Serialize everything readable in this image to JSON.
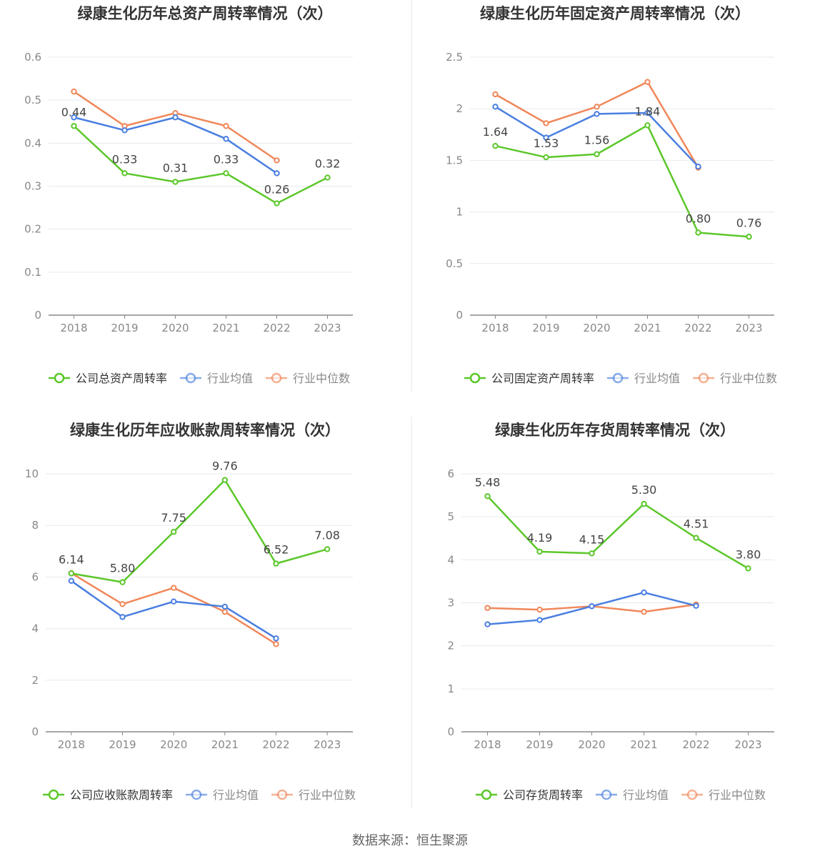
{
  "colors": {
    "company": "#5cc72a",
    "industry_avg": "#4a7fe0",
    "industry_median": "#f0875a",
    "grid": "#e6e9f0",
    "axis": "#888888",
    "tick_text": "#888888",
    "label_text": "#444444",
    "title_text": "#333333",
    "legend_text": "#666666"
  },
  "source": "数据来源：恒生聚源",
  "chart_data": [
    {
      "type": "line",
      "title": "绿康生化历年总资产周转率情况（次）",
      "categories": [
        "2018",
        "2019",
        "2020",
        "2021",
        "2022",
        "2023"
      ],
      "ylim": [
        0,
        0.6
      ],
      "yticks": [
        "0",
        "0.1",
        "0.2",
        "0.3",
        "0.4",
        "0.5",
        "0.6"
      ],
      "ytick_values": [
        0,
        0.1,
        0.2,
        0.3,
        0.4,
        0.5,
        0.6
      ],
      "grid": true,
      "legend": "bottom",
      "series": [
        {
          "name": "公司总资产周转率",
          "key": "company",
          "values": [
            0.44,
            0.33,
            0.31,
            0.33,
            0.26,
            0.32
          ],
          "labels": [
            "0.44",
            "0.33",
            "0.31",
            "0.33",
            "0.26",
            "0.32"
          ]
        },
        {
          "name": "行业均值",
          "key": "industry_avg",
          "values": [
            0.46,
            0.43,
            0.46,
            0.41,
            0.33,
            null
          ]
        },
        {
          "name": "行业中位数",
          "key": "industry_median",
          "values": [
            0.52,
            0.44,
            0.47,
            0.44,
            0.36,
            null
          ]
        }
      ]
    },
    {
      "type": "line",
      "title": "绿康生化历年固定资产周转率情况（次）",
      "categories": [
        "2018",
        "2019",
        "2020",
        "2021",
        "2022",
        "2023"
      ],
      "ylim": [
        0,
        2.5
      ],
      "yticks": [
        "0",
        "0.5",
        "1",
        "1.5",
        "2",
        "2.5"
      ],
      "ytick_values": [
        0,
        0.5,
        1,
        1.5,
        2,
        2.5
      ],
      "grid": true,
      "legend": "bottom",
      "series": [
        {
          "name": "公司固定资产周转率",
          "key": "company",
          "values": [
            1.64,
            1.53,
            1.56,
            1.84,
            0.8,
            0.76
          ],
          "labels": [
            "1.64",
            "1.53",
            "1.56",
            "1.84",
            "0.80",
            "0.76"
          ]
        },
        {
          "name": "行业均值",
          "key": "industry_avg",
          "values": [
            2.02,
            1.72,
            1.95,
            1.96,
            1.44,
            null
          ]
        },
        {
          "name": "行业中位数",
          "key": "industry_median",
          "values": [
            2.14,
            1.86,
            2.02,
            2.26,
            1.43,
            null
          ]
        }
      ]
    },
    {
      "type": "line",
      "title": "绿康生化历年应收账款周转率情况（次）",
      "categories": [
        "2018",
        "2019",
        "2020",
        "2021",
        "2022",
        "2023"
      ],
      "ylim": [
        0,
        10
      ],
      "yticks": [
        "0",
        "2",
        "4",
        "6",
        "8",
        "10"
      ],
      "ytick_values": [
        0,
        2,
        4,
        6,
        8,
        10
      ],
      "grid": true,
      "legend": "bottom",
      "series": [
        {
          "name": "公司应收账款周转率",
          "key": "company",
          "values": [
            6.14,
            5.8,
            7.75,
            9.76,
            6.52,
            7.08
          ],
          "labels": [
            "6.14",
            "5.80",
            "7.75",
            "9.76",
            "6.52",
            "7.08"
          ]
        },
        {
          "name": "行业均值",
          "key": "industry_avg",
          "values": [
            5.85,
            4.45,
            5.05,
            4.85,
            3.62,
            null
          ]
        },
        {
          "name": "行业中位数",
          "key": "industry_median",
          "values": [
            6.15,
            4.95,
            5.58,
            4.65,
            3.4,
            null
          ]
        }
      ]
    },
    {
      "type": "line",
      "title": "绿康生化历年存货周转率情况（次）",
      "categories": [
        "2018",
        "2019",
        "2020",
        "2021",
        "2022",
        "2023"
      ],
      "ylim": [
        0,
        6
      ],
      "yticks": [
        "0",
        "1",
        "2",
        "3",
        "4",
        "5",
        "6"
      ],
      "ytick_values": [
        0,
        1,
        2,
        3,
        4,
        5,
        6
      ],
      "grid": true,
      "legend": "bottom",
      "series": [
        {
          "name": "公司存货周转率",
          "key": "company",
          "values": [
            5.48,
            4.19,
            4.15,
            5.3,
            4.51,
            3.8
          ],
          "labels": [
            "5.48",
            "4.19",
            "4.15",
            "5.30",
            "4.51",
            "3.80"
          ]
        },
        {
          "name": "行业均值",
          "key": "industry_avg",
          "values": [
            2.5,
            2.6,
            2.92,
            3.24,
            2.93,
            null
          ]
        },
        {
          "name": "行业中位数",
          "key": "industry_median",
          "values": [
            2.88,
            2.84,
            2.92,
            2.79,
            2.96,
            null
          ]
        }
      ]
    }
  ]
}
